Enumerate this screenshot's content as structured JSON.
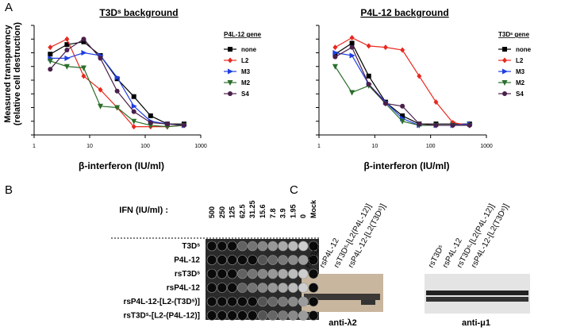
{
  "panel_letters": [
    "A",
    "B",
    "C"
  ],
  "chart_data": [
    {
      "type": "line",
      "title": "T3Dˢ background",
      "xscale": "log",
      "xlim": [
        1,
        1000
      ],
      "xticks": [
        1,
        10,
        100,
        1000
      ],
      "ylim": [
        0,
        8
      ],
      "yticks": [
        0,
        1,
        2,
        3,
        4,
        5,
        6,
        7,
        8
      ],
      "ylabel": [
        "Measured transparency",
        "(relative cell destruction)"
      ],
      "xlabel": "β-interferon (IU/ml)",
      "legend_title": "P4L-12 gene",
      "x": [
        1.95,
        3.9,
        7.8,
        15.6,
        31.25,
        62.5,
        125,
        250,
        500
      ],
      "series": [
        {
          "name": "none",
          "color": "#000000",
          "marker": "square",
          "values": [
            5.9,
            6.6,
            6.8,
            5.8,
            4.1,
            2.8,
            1.4,
            0.8,
            0.8
          ]
        },
        {
          "name": "L2",
          "color": "#e8281e",
          "marker": "diamond",
          "values": [
            6.4,
            7.0,
            4.3,
            3.3,
            2.0,
            0.6,
            0.6,
            0.6,
            0.7
          ]
        },
        {
          "name": "M3",
          "color": "#1f3fe0",
          "marker": "triangle-right",
          "values": [
            5.6,
            5.6,
            6.0,
            5.8,
            4.2,
            2.1,
            1.0,
            0.8,
            0.7
          ]
        },
        {
          "name": "M2",
          "color": "#2a6e2a",
          "marker": "triangle-down",
          "values": [
            5.4,
            5.0,
            4.9,
            2.1,
            2.0,
            1.0,
            0.7,
            0.6,
            0.7
          ]
        },
        {
          "name": "S4",
          "color": "#4a1f4a",
          "marker": "circle",
          "values": [
            4.8,
            6.2,
            7.0,
            5.6,
            3.2,
            1.7,
            0.9,
            0.8,
            0.7
          ]
        }
      ]
    },
    {
      "type": "line",
      "title": "P4L-12 background",
      "xscale": "log",
      "xlim": [
        1,
        1000
      ],
      "xticks": [
        1,
        10,
        100,
        1000
      ],
      "ylim": [
        0,
        8
      ],
      "yticks": [
        0,
        1,
        2,
        3,
        4,
        5,
        6,
        7,
        8
      ],
      "xlabel": "β-interferon (IU/ml)",
      "legend_title": "T3Dˢ gene",
      "x": [
        1.95,
        3.9,
        7.8,
        15.6,
        31.25,
        62.5,
        125,
        250,
        500
      ],
      "series": [
        {
          "name": "none",
          "color": "#000000",
          "marker": "square",
          "values": [
            5.9,
            6.7,
            4.3,
            2.4,
            1.4,
            0.8,
            0.8,
            0.8,
            0.8
          ]
        },
        {
          "name": "L2",
          "color": "#e8281e",
          "marker": "diamond",
          "values": [
            6.4,
            7.1,
            6.5,
            6.4,
            6.2,
            4.3,
            2.4,
            0.9,
            0.7
          ]
        },
        {
          "name": "M3",
          "color": "#1f3fe0",
          "marker": "triangle-right",
          "values": [
            6.0,
            5.8,
            3.7,
            2.4,
            1.2,
            0.7,
            0.7,
            0.7,
            0.8
          ]
        },
        {
          "name": "M2",
          "color": "#2a6e2a",
          "marker": "triangle-down",
          "values": [
            5.0,
            3.1,
            3.6,
            2.3,
            1.0,
            0.7,
            0.7,
            0.7,
            0.7
          ]
        },
        {
          "name": "S4",
          "color": "#4a1f4a",
          "marker": "circle",
          "values": [
            5.7,
            6.4,
            3.7,
            2.3,
            2.1,
            0.8,
            0.7,
            0.7,
            0.7
          ]
        }
      ]
    }
  ],
  "panel_b": {
    "column_title": "IFN (IU/ml) :",
    "columns": [
      "500",
      "250",
      "125",
      "62.5",
      "31.25",
      "15.6",
      "7.8",
      "3.9",
      "1.95",
      "0",
      "Mock"
    ],
    "rows": [
      "T3Dˢ",
      "P4L-12",
      "rsT3Dˢ",
      "rsP4L-12",
      "rsP4L-12-[L2-(T3Dˢ)]",
      "rsT3Dˢ-[L2-(P4L-12)]"
    ]
  },
  "panel_c": {
    "lanes": [
      "rsT3Dˢ",
      "rsP4L-12",
      "rsT3Dˢ-[L2(P4L-12)]",
      "rsP4L-12-[L2(T3Dˢ)]"
    ],
    "blots": [
      "anti-λ2",
      "anti-μ1"
    ]
  }
}
